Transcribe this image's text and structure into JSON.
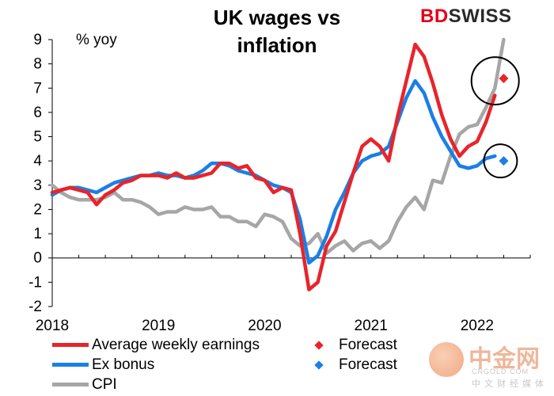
{
  "title_line1": "UK wages vs",
  "title_line2": "inflation",
  "unit_label": "% yoy",
  "brand": {
    "part1": "BD",
    "part2": "SWISS"
  },
  "legend": {
    "awe": "Average weekly earnings",
    "ex_bonus": "Ex bonus",
    "cpi": "CPI",
    "forecast1": "Forecast",
    "forecast2": "Forecast"
  },
  "watermark": {
    "zh": "中金网",
    "url": "CNGOLD.COM",
    "sub": "中文财经媒体"
  },
  "colors": {
    "awe": "#e8242a",
    "ex_bonus": "#1a7fe6",
    "cpi": "#a6a6a6",
    "axis": "#000000"
  },
  "chart_data": {
    "type": "line",
    "x_unit": "year (decimal)",
    "xlim": [
      2018.0,
      2022.5
    ],
    "ylim": [
      -2,
      9
    ],
    "x_ticks": [
      2018,
      2019,
      2020,
      2021,
      2022
    ],
    "x_tick_labels": [
      "2018",
      "2019",
      "2020",
      "2021",
      "2022"
    ],
    "y_ticks": [
      -2,
      -1,
      0,
      1,
      2,
      3,
      4,
      5,
      6,
      7,
      8,
      9
    ],
    "y_tick_labels": [
      "-2",
      "-1",
      "0",
      "1",
      "2",
      "3",
      "4",
      "5",
      "6",
      "7",
      "8",
      "9"
    ],
    "grid": false,
    "series": [
      {
        "name": "Average weekly earnings",
        "color": "#e8242a",
        "points": [
          [
            2018.0,
            2.7
          ],
          [
            2018.083,
            2.8
          ],
          [
            2018.167,
            2.9
          ],
          [
            2018.25,
            2.8
          ],
          [
            2018.333,
            2.7
          ],
          [
            2018.417,
            2.2
          ],
          [
            2018.5,
            2.6
          ],
          [
            2018.583,
            2.8
          ],
          [
            2018.667,
            3.1
          ],
          [
            2018.75,
            3.2
          ],
          [
            2018.833,
            3.4
          ],
          [
            2018.917,
            3.4
          ],
          [
            2019.0,
            3.4
          ],
          [
            2019.083,
            3.3
          ],
          [
            2019.167,
            3.5
          ],
          [
            2019.25,
            3.3
          ],
          [
            2019.333,
            3.3
          ],
          [
            2019.417,
            3.4
          ],
          [
            2019.5,
            3.5
          ],
          [
            2019.583,
            3.9
          ],
          [
            2019.667,
            3.9
          ],
          [
            2019.75,
            3.7
          ],
          [
            2019.833,
            3.8
          ],
          [
            2019.917,
            3.3
          ],
          [
            2020.0,
            3.2
          ],
          [
            2020.083,
            2.7
          ],
          [
            2020.167,
            2.9
          ],
          [
            2020.25,
            2.8
          ],
          [
            2020.333,
            1.0
          ],
          [
            2020.417,
            -1.3
          ],
          [
            2020.5,
            -1.0
          ],
          [
            2020.583,
            0.5
          ],
          [
            2020.667,
            1.1
          ],
          [
            2020.75,
            2.3
          ],
          [
            2020.833,
            3.5
          ],
          [
            2020.917,
            4.6
          ],
          [
            2021.0,
            4.9
          ],
          [
            2021.083,
            4.6
          ],
          [
            2021.167,
            4.0
          ],
          [
            2021.25,
            5.8
          ],
          [
            2021.333,
            7.3
          ],
          [
            2021.417,
            8.8
          ],
          [
            2021.5,
            8.3
          ],
          [
            2021.583,
            7.2
          ],
          [
            2021.667,
            5.9
          ],
          [
            2021.75,
            4.9
          ],
          [
            2021.833,
            4.2
          ],
          [
            2021.917,
            4.6
          ],
          [
            2022.0,
            4.8
          ],
          [
            2022.083,
            5.6
          ],
          [
            2022.167,
            6.7
          ]
        ]
      },
      {
        "name": "Ex bonus",
        "color": "#1a7fe6",
        "points": [
          [
            2018.0,
            2.6
          ],
          [
            2018.083,
            2.8
          ],
          [
            2018.167,
            2.9
          ],
          [
            2018.25,
            2.9
          ],
          [
            2018.333,
            2.8
          ],
          [
            2018.417,
            2.7
          ],
          [
            2018.5,
            2.9
          ],
          [
            2018.583,
            3.1
          ],
          [
            2018.667,
            3.2
          ],
          [
            2018.75,
            3.3
          ],
          [
            2018.833,
            3.4
          ],
          [
            2018.917,
            3.4
          ],
          [
            2019.0,
            3.5
          ],
          [
            2019.083,
            3.4
          ],
          [
            2019.167,
            3.4
          ],
          [
            2019.25,
            3.3
          ],
          [
            2019.333,
            3.4
          ],
          [
            2019.417,
            3.6
          ],
          [
            2019.5,
            3.9
          ],
          [
            2019.583,
            3.9
          ],
          [
            2019.667,
            3.8
          ],
          [
            2019.75,
            3.6
          ],
          [
            2019.833,
            3.5
          ],
          [
            2019.917,
            3.4
          ],
          [
            2020.0,
            3.2
          ],
          [
            2020.083,
            3.0
          ],
          [
            2020.167,
            2.9
          ],
          [
            2020.25,
            2.7
          ],
          [
            2020.333,
            1.6
          ],
          [
            2020.417,
            -0.2
          ],
          [
            2020.5,
            0.1
          ],
          [
            2020.583,
            0.9
          ],
          [
            2020.667,
            2.0
          ],
          [
            2020.75,
            2.7
          ],
          [
            2020.833,
            3.5
          ],
          [
            2020.917,
            4.0
          ],
          [
            2021.0,
            4.2
          ],
          [
            2021.083,
            4.3
          ],
          [
            2021.167,
            4.6
          ],
          [
            2021.25,
            5.6
          ],
          [
            2021.333,
            6.6
          ],
          [
            2021.417,
            7.3
          ],
          [
            2021.5,
            6.8
          ],
          [
            2021.583,
            5.8
          ],
          [
            2021.667,
            5.0
          ],
          [
            2021.75,
            4.4
          ],
          [
            2021.833,
            3.8
          ],
          [
            2021.917,
            3.7
          ],
          [
            2022.0,
            3.8
          ],
          [
            2022.083,
            4.1
          ],
          [
            2022.167,
            4.2
          ]
        ]
      },
      {
        "name": "CPI",
        "color": "#a6a6a6",
        "points": [
          [
            2018.0,
            3.0
          ],
          [
            2018.083,
            2.7
          ],
          [
            2018.167,
            2.5
          ],
          [
            2018.25,
            2.4
          ],
          [
            2018.333,
            2.4
          ],
          [
            2018.417,
            2.4
          ],
          [
            2018.5,
            2.5
          ],
          [
            2018.583,
            2.7
          ],
          [
            2018.667,
            2.4
          ],
          [
            2018.75,
            2.4
          ],
          [
            2018.833,
            2.3
          ],
          [
            2018.917,
            2.1
          ],
          [
            2019.0,
            1.8
          ],
          [
            2019.083,
            1.9
          ],
          [
            2019.167,
            1.9
          ],
          [
            2019.25,
            2.1
          ],
          [
            2019.333,
            2.0
          ],
          [
            2019.417,
            2.0
          ],
          [
            2019.5,
            2.1
          ],
          [
            2019.583,
            1.7
          ],
          [
            2019.667,
            1.7
          ],
          [
            2019.75,
            1.5
          ],
          [
            2019.833,
            1.5
          ],
          [
            2019.917,
            1.3
          ],
          [
            2020.0,
            1.8
          ],
          [
            2020.083,
            1.7
          ],
          [
            2020.167,
            1.5
          ],
          [
            2020.25,
            0.8
          ],
          [
            2020.333,
            0.5
          ],
          [
            2020.417,
            0.6
          ],
          [
            2020.5,
            1.0
          ],
          [
            2020.583,
            0.2
          ],
          [
            2020.667,
            0.5
          ],
          [
            2020.75,
            0.7
          ],
          [
            2020.833,
            0.3
          ],
          [
            2020.917,
            0.6
          ],
          [
            2021.0,
            0.7
          ],
          [
            2021.083,
            0.4
          ],
          [
            2021.167,
            0.7
          ],
          [
            2021.25,
            1.5
          ],
          [
            2021.333,
            2.1
          ],
          [
            2021.417,
            2.5
          ],
          [
            2021.5,
            2.0
          ],
          [
            2021.583,
            3.2
          ],
          [
            2021.667,
            3.1
          ],
          [
            2021.75,
            4.2
          ],
          [
            2021.833,
            5.1
          ],
          [
            2021.917,
            5.4
          ],
          [
            2022.0,
            5.5
          ],
          [
            2022.083,
            6.2
          ],
          [
            2022.167,
            7.0
          ],
          [
            2022.25,
            9.0
          ]
        ]
      }
    ],
    "forecasts": [
      {
        "name": "Forecast",
        "color": "#e8242a",
        "x": 2022.25,
        "y": 7.4
      },
      {
        "name": "Forecast",
        "color": "#1a7fe6",
        "x": 2022.25,
        "y": 4.0
      }
    ],
    "annotations": [
      {
        "type": "circle",
        "x": 2022.17,
        "y": 7.3
      },
      {
        "type": "circle",
        "x": 2022.22,
        "y": 4.0
      }
    ]
  }
}
